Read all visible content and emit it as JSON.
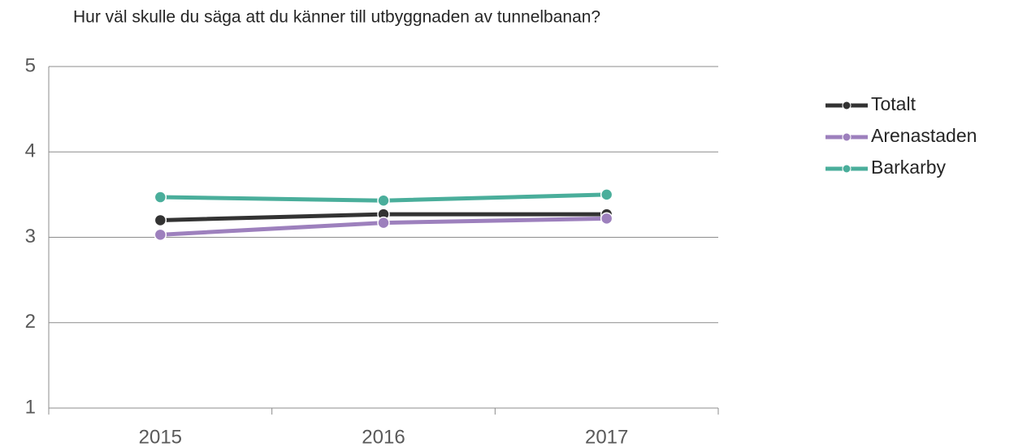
{
  "chart_data": {
    "type": "line",
    "title": "Hur väl skulle du säga att du känner till utbyggnaden av tunnelbanan?",
    "categories": [
      "2015",
      "2016",
      "2017"
    ],
    "series": [
      {
        "name": "Totalt",
        "color": "#333333",
        "values": [
          3.2,
          3.27,
          3.27
        ]
      },
      {
        "name": "Arenastaden",
        "color": "#9d80bd",
        "values": [
          3.03,
          3.17,
          3.22
        ]
      },
      {
        "name": "Barkarby",
        "color": "#4aae9b",
        "values": [
          3.47,
          3.43,
          3.5
        ]
      }
    ],
    "ylim": [
      1,
      5
    ],
    "yticks": [
      1,
      2,
      3,
      4,
      5
    ],
    "grid": true,
    "legend": "right"
  }
}
